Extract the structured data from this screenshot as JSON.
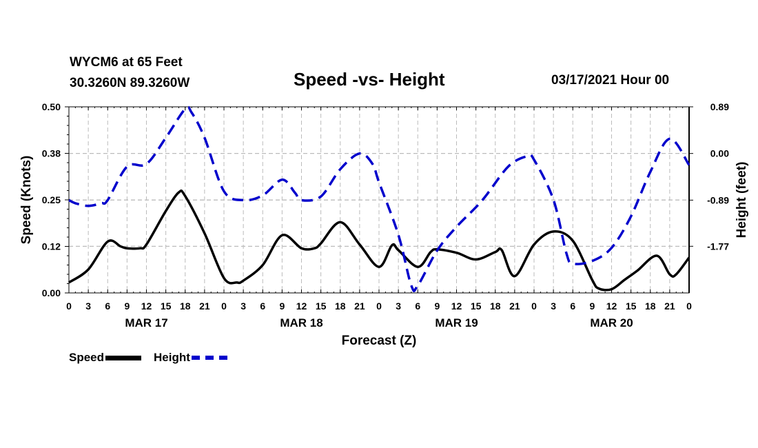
{
  "header": {
    "station": "WYCM6 at 65 Feet",
    "coords": "30.3260N 89.3260W",
    "title": "Speed -vs- Height",
    "date_hour": "03/17/2021 Hour 00"
  },
  "legend": {
    "speed": "Speed",
    "height": "Height"
  },
  "colors": {
    "speed": "#000000",
    "height": "#0000cc",
    "grid": "#bbbbbb"
  },
  "chart_data": {
    "type": "line",
    "title": "Speed -vs- Height",
    "xlabel": "Forecast (Z)",
    "ylabel": "Speed (Knots)",
    "y2label": "Height (feet)",
    "x_range_hours": [
      0,
      96
    ],
    "ylim": [
      0,
      0.5
    ],
    "y2lim": [
      -2.66,
      0.89
    ],
    "y_ticks": [
      "0.00",
      "0.12",
      "0.25",
      "0.38",
      "0.50"
    ],
    "y_tick_values": [
      0,
      0.125,
      0.25,
      0.375,
      0.5
    ],
    "y2_ticks": [
      "-1.77",
      "-0.89",
      "0.00",
      "0.89"
    ],
    "y2_tick_values": [
      -1.77,
      -0.89,
      0.0,
      0.89
    ],
    "x_tick_labels": [
      "0",
      "3",
      "6",
      "9",
      "12",
      "15",
      "18",
      "21",
      "0",
      "3",
      "6",
      "9",
      "12",
      "15",
      "18",
      "21",
      "0",
      "3",
      "6",
      "9",
      "12",
      "15",
      "18",
      "21",
      "0",
      "3",
      "6",
      "9",
      "12",
      "15",
      "18",
      "21",
      "0"
    ],
    "day_labels": [
      {
        "label": "MAR 17",
        "hour": 12
      },
      {
        "label": "MAR 18",
        "hour": 36
      },
      {
        "label": "MAR 19",
        "hour": 60
      },
      {
        "label": "MAR 20",
        "hour": 84
      }
    ],
    "series": [
      {
        "name": "Speed",
        "axis": "left",
        "hours": [
          0,
          3,
          6,
          8,
          9,
          11,
          12,
          15,
          17,
          18,
          21,
          24,
          26,
          27,
          30,
          33,
          36,
          38,
          39,
          42,
          45,
          48,
          50,
          51,
          54,
          56,
          57,
          60,
          63,
          66,
          67,
          69,
          72,
          75,
          78,
          81,
          82,
          84,
          86,
          88,
          91,
          93,
          94,
          96
        ],
        "values": [
          0.028,
          0.063,
          0.138,
          0.125,
          0.12,
          0.12,
          0.13,
          0.22,
          0.27,
          0.26,
          0.16,
          0.04,
          0.028,
          0.033,
          0.075,
          0.155,
          0.12,
          0.12,
          0.133,
          0.19,
          0.13,
          0.07,
          0.128,
          0.115,
          0.07,
          0.11,
          0.117,
          0.108,
          0.09,
          0.11,
          0.115,
          0.045,
          0.13,
          0.165,
          0.14,
          0.035,
          0.012,
          0.01,
          0.035,
          0.06,
          0.1,
          0.05,
          0.05,
          0.095
        ]
      },
      {
        "name": "Height",
        "axis": "right",
        "hours": [
          0,
          1,
          3,
          5,
          6,
          9,
          12,
          15,
          18,
          19,
          21,
          24,
          27,
          30,
          33,
          35,
          36,
          39,
          42,
          45,
          47,
          48,
          51,
          53,
          54,
          57,
          60,
          64,
          68,
          71,
          72,
          75,
          77,
          78,
          81,
          84,
          87,
          90,
          93,
          96
        ],
        "values": [
          -0.89,
          -0.95,
          -1.0,
          -0.95,
          -0.89,
          -0.25,
          -0.2,
          0.3,
          0.85,
          0.78,
          0.3,
          -0.72,
          -0.89,
          -0.8,
          -0.5,
          -0.75,
          -0.89,
          -0.82,
          -0.3,
          0.0,
          -0.2,
          -0.55,
          -1.55,
          -2.52,
          -2.52,
          -1.85,
          -1.4,
          -0.89,
          -0.25,
          -0.05,
          -0.12,
          -0.88,
          -1.9,
          -2.1,
          -2.05,
          -1.8,
          -1.2,
          -0.35,
          0.28,
          -0.22
        ]
      }
    ]
  }
}
